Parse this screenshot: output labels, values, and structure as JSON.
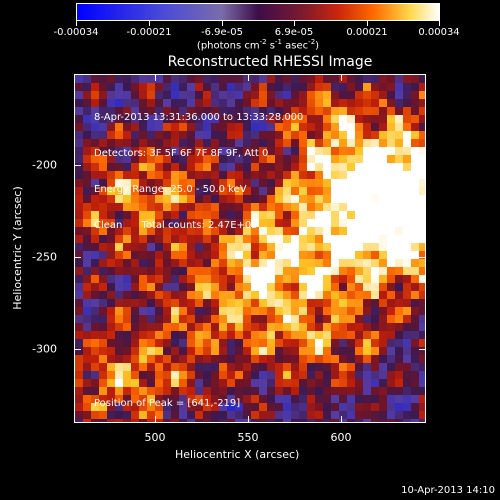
{
  "colorbar": {
    "ticks": [
      "-0.00034",
      "-0.00021",
      "-6.9e-05",
      "6.9e-05",
      "0.00021",
      "0.00034"
    ],
    "unit_text": "(photons cm",
    "unit_exp1": "-2",
    "unit_mid": " s",
    "unit_exp2": "-1",
    "unit_end": " asec",
    "unit_exp3": "-2",
    "unit_close": ")"
  },
  "plot": {
    "title": "Reconstructed RHESSI Image",
    "info_lines": [
      "8-Apr-2013 13:31:36.000 to 13:33:28.000",
      "Detectors: 3F 5F 6F 7F 8F 9F, Att 0",
      "Energy Range: 25.0 - 50.0 keV",
      "Clean      Total counts: 2.47E+03"
    ],
    "peak": "Position of Peak = [641,-219]"
  },
  "axes": {
    "x_label": "Heliocentric X (arcsec)",
    "y_label": "Heliocentric Y (arcsec)",
    "x_ticks": [
      "500",
      "550",
      "600"
    ],
    "y_ticks": [
      "-200",
      "-250",
      "-300"
    ],
    "xlim": [
      456,
      646
    ],
    "ylim": [
      -331,
      -143
    ]
  },
  "timestamp": "10-Apr-2013 14:10",
  "colors": {
    "background": "#000000",
    "foreground": "#ffffff",
    "cmap_low": "#0000ff",
    "cmap_mid": "#3d0d4a",
    "cmap_high": "#ffffff"
  }
}
